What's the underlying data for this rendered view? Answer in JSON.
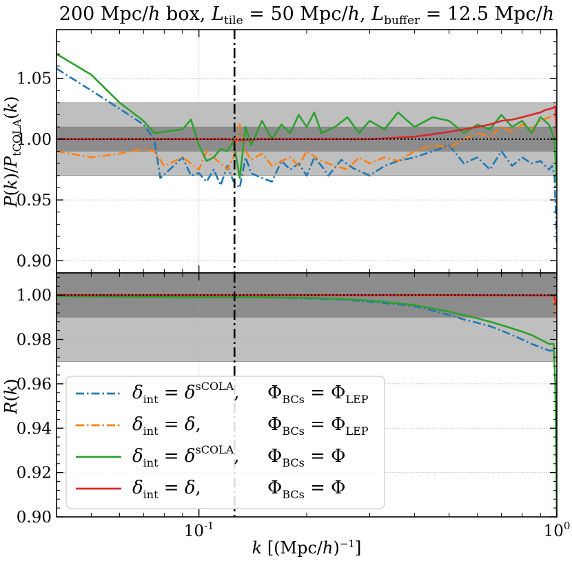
{
  "chart_data": [
    {
      "type": "line",
      "panel": "top",
      "title": "200 Mpc/h box, L_tile = 50 Mpc/h, L_buffer = 12.5 Mpc/h",
      "ylabel": "P(k)/P_tCOLA(k)",
      "xscale": "log",
      "xlim": [
        0.04,
        1.0
      ],
      "ylim": [
        0.89,
        1.09
      ],
      "yticks": [
        0.9,
        0.95,
        1.0,
        1.05
      ],
      "ytick_labels": [
        "0.90",
        "0.95",
        "1.00",
        "1.05"
      ],
      "bands": [
        {
          "range": [
            0.97,
            1.03
          ],
          "color": "#bfbfbf"
        },
        {
          "range": [
            0.99,
            1.01
          ],
          "color": "#8c8c8c"
        }
      ],
      "reference_line": 1.0,
      "vertical_line_x": 0.1257,
      "series": [
        {
          "name": "delta_int = delta^sCOLA, Phi_BCs = Phi_LEP",
          "color": "#1f77b4",
          "style": "dashdot",
          "x": [
            0.04,
            0.05,
            0.06,
            0.07,
            0.075,
            0.078,
            0.085,
            0.09,
            0.095,
            0.1,
            0.105,
            0.11,
            0.115,
            0.12,
            0.125,
            0.13,
            0.135,
            0.14,
            0.15,
            0.16,
            0.17,
            0.18,
            0.19,
            0.2,
            0.21,
            0.22,
            0.23,
            0.25,
            0.27,
            0.3,
            0.33,
            0.36,
            0.4,
            0.45,
            0.5,
            0.55,
            0.6,
            0.65,
            0.7,
            0.75,
            0.8,
            0.85,
            0.9,
            0.95,
            0.97,
            0.985,
            1.0
          ],
          "y": [
            1.058,
            1.04,
            1.025,
            1.012,
            1.0,
            0.968,
            0.978,
            0.985,
            0.97,
            0.972,
            0.965,
            0.975,
            0.962,
            0.978,
            0.965,
            0.96,
            0.985,
            0.972,
            0.968,
            0.965,
            0.982,
            0.975,
            0.98,
            0.97,
            0.985,
            0.978,
            0.97,
            0.983,
            0.976,
            0.97,
            0.978,
            0.982,
            0.985,
            0.99,
            0.995,
            0.98,
            0.985,
            0.975,
            0.99,
            0.978,
            0.985,
            0.98,
            0.982,
            0.975,
            0.978,
            0.97,
            0.915
          ]
        },
        {
          "name": "delta_int = delta, Phi_BCs = Phi_LEP",
          "color": "#ff7f0e",
          "style": "dashdot",
          "x": [
            0.04,
            0.05,
            0.06,
            0.07,
            0.075,
            0.08,
            0.09,
            0.1,
            0.105,
            0.11,
            0.115,
            0.12,
            0.125,
            0.13,
            0.135,
            0.14,
            0.15,
            0.16,
            0.17,
            0.18,
            0.19,
            0.2,
            0.22,
            0.24,
            0.26,
            0.28,
            0.3,
            0.33,
            0.36,
            0.4,
            0.45,
            0.5,
            0.55,
            0.6,
            0.65,
            0.7,
            0.75,
            0.8,
            0.85,
            0.9,
            0.95,
            0.97,
            1.0
          ],
          "y": [
            0.99,
            0.985,
            0.988,
            0.992,
            0.99,
            0.978,
            0.985,
            0.975,
            0.99,
            0.985,
            0.98,
            0.975,
            0.985,
            1.012,
            0.99,
            0.983,
            0.988,
            0.978,
            0.982,
            0.985,
            0.978,
            0.99,
            0.982,
            0.978,
            0.975,
            0.985,
            0.98,
            0.985,
            0.982,
            0.99,
            0.995,
            0.993,
            1.0,
            1.005,
            1.002,
            1.01,
            1.006,
            1.012,
            1.008,
            1.015,
            1.018,
            1.019,
            1.019
          ]
        },
        {
          "name": "delta_int = delta^sCOLA, Phi_BCs = Phi",
          "color": "#2ca02c",
          "style": "solid",
          "x": [
            0.04,
            0.05,
            0.06,
            0.07,
            0.075,
            0.08,
            0.09,
            0.095,
            0.1,
            0.105,
            0.11,
            0.115,
            0.12,
            0.125,
            0.13,
            0.135,
            0.14,
            0.15,
            0.16,
            0.17,
            0.18,
            0.19,
            0.2,
            0.21,
            0.22,
            0.24,
            0.26,
            0.28,
            0.3,
            0.33,
            0.36,
            0.4,
            0.45,
            0.5,
            0.55,
            0.6,
            0.65,
            0.7,
            0.75,
            0.8,
            0.85,
            0.9,
            0.95,
            0.97,
            0.985,
            1.0
          ],
          "y": [
            1.07,
            1.053,
            1.03,
            1.015,
            1.005,
            1.006,
            1.008,
            1.016,
            0.995,
            0.982,
            0.985,
            0.992,
            0.99,
            0.998,
            0.968,
            1.01,
            0.995,
            1.015,
            1.0,
            1.012,
            1.005,
            1.02,
            1.01,
            1.022,
            1.005,
            1.01,
            1.018,
            1.005,
            1.015,
            1.008,
            1.022,
            1.01,
            1.018,
            1.015,
            1.005,
            1.012,
            1.008,
            1.02,
            1.01,
            1.015,
            1.005,
            1.018,
            1.012,
            1.005,
            1.0,
            0.96
          ]
        },
        {
          "name": "delta_int = delta, Phi_BCs = Phi",
          "color": "#d62728",
          "style": "solid",
          "x": [
            0.04,
            0.06,
            0.08,
            0.1,
            0.12,
            0.13,
            0.15,
            0.2,
            0.25,
            0.3,
            0.35,
            0.4,
            0.45,
            0.5,
            0.55,
            0.6,
            0.65,
            0.7,
            0.75,
            0.8,
            0.85,
            0.9,
            0.93,
            0.96,
            0.98,
            0.99,
            1.0
          ],
          "y": [
            1.0,
            1.0,
            1.0,
            1.0,
            1.0,
            0.999,
            1.0,
            1.0,
            1.0,
            1.0,
            1.001,
            1.002,
            1.004,
            1.006,
            1.008,
            1.01,
            1.012,
            1.015,
            1.016,
            1.018,
            1.02,
            1.022,
            1.024,
            1.025,
            1.026,
            1.027,
            1.0
          ]
        }
      ]
    },
    {
      "type": "line",
      "panel": "bottom",
      "xlabel": "k [(Mpc/h)^-1]",
      "ylabel": "R(k)",
      "xscale": "log",
      "xlim": [
        0.04,
        1.0
      ],
      "ylim": [
        0.9,
        1.01
      ],
      "xticks": [
        0.1,
        1.0
      ],
      "xtick_labels": [
        "10^-1",
        "10^0"
      ],
      "yticks": [
        0.9,
        0.92,
        0.94,
        0.96,
        0.98,
        1.0
      ],
      "ytick_labels": [
        "0.90",
        "0.92",
        "0.94",
        "0.96",
        "0.98",
        "1.00"
      ],
      "bands": [
        {
          "range": [
            0.97,
            1.03
          ],
          "color": "#bfbfbf"
        },
        {
          "range": [
            0.99,
            1.01
          ],
          "color": "#8c8c8c"
        }
      ],
      "reference_line": 1.0,
      "vertical_line_x": 0.1257,
      "series": [
        {
          "name": "delta_int = delta^sCOLA, Phi_BCs = Phi_LEP",
          "color": "#1f77b4",
          "style": "dashdot",
          "x": [
            0.04,
            0.1,
            0.15,
            0.2,
            0.25,
            0.3,
            0.35,
            0.4,
            0.45,
            0.5,
            0.55,
            0.6,
            0.65,
            0.7,
            0.75,
            0.8,
            0.85,
            0.9,
            0.95,
            0.98
          ],
          "y": [
            0.9995,
            0.999,
            0.999,
            0.9985,
            0.998,
            0.997,
            0.996,
            0.995,
            0.993,
            0.991,
            0.989,
            0.9875,
            0.986,
            0.984,
            0.982,
            0.98,
            0.978,
            0.9765,
            0.975,
            0.975
          ]
        },
        {
          "name": "delta_int = delta, Phi_BCs = Phi_LEP",
          "color": "#ff7f0e",
          "style": "dashdot",
          "x": [
            0.04,
            0.2,
            0.5,
            0.9,
            0.98,
            1.0
          ],
          "y": [
            0.9999,
            0.9999,
            0.9998,
            0.9998,
            0.9995,
            0.99
          ]
        },
        {
          "name": "delta_int = delta^sCOLA, Phi_BCs = Phi",
          "color": "#2ca02c",
          "style": "solid",
          "x": [
            0.04,
            0.1,
            0.15,
            0.2,
            0.25,
            0.3,
            0.35,
            0.4,
            0.45,
            0.5,
            0.55,
            0.6,
            0.65,
            0.7,
            0.75,
            0.8,
            0.85,
            0.9,
            0.95,
            0.98,
            0.99,
            1.0
          ],
          "y": [
            0.9995,
            0.999,
            0.999,
            0.9988,
            0.9983,
            0.9975,
            0.9965,
            0.9955,
            0.994,
            0.9925,
            0.991,
            0.9895,
            0.988,
            0.9865,
            0.985,
            0.9835,
            0.982,
            0.98,
            0.978,
            0.978,
            0.96,
            0.9
          ]
        },
        {
          "name": "delta_int = delta, Phi_BCs = Phi",
          "color": "#d62728",
          "style": "solid",
          "x": [
            0.04,
            0.5,
            0.98,
            1.0
          ],
          "y": [
            1.0,
            1.0,
            0.9998,
            0.995
          ]
        }
      ]
    }
  ],
  "legend": {
    "placement": "lower-left of bottom panel",
    "entries": [
      {
        "left": "δint = δsCOLA,",
        "right": "ΦBCs = ΦLEP",
        "color": "#1f77b4",
        "style": "dashdot"
      },
      {
        "left": "δint = δ,",
        "right": "ΦBCs = ΦLEP",
        "color": "#ff7f0e",
        "style": "dashdot"
      },
      {
        "left": "δint = δsCOLA,",
        "right": "ΦBCs = Φ",
        "color": "#2ca02c",
        "style": "solid"
      },
      {
        "left": "δint = δ,",
        "right": "ΦBCs = Φ",
        "color": "#d62728",
        "style": "solid"
      }
    ]
  }
}
